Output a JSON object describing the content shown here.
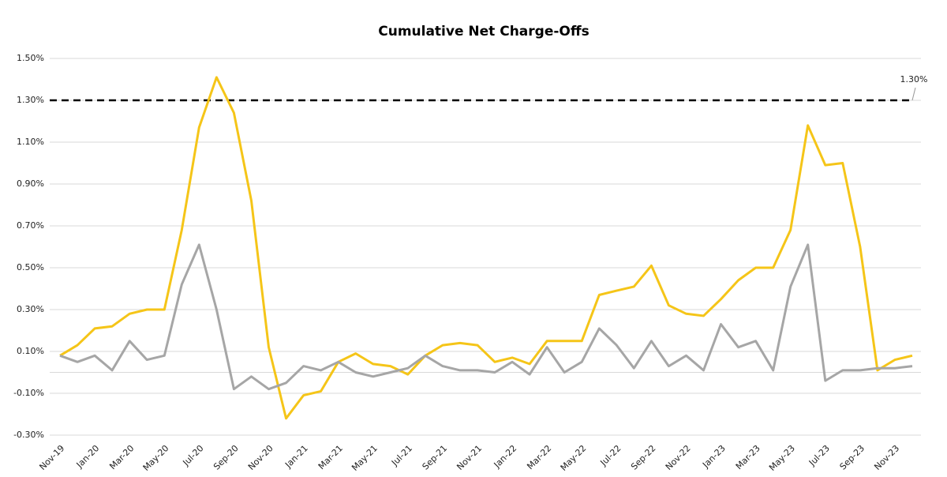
{
  "chart_data": {
    "type": "line",
    "title": "Cumulative Net Charge-Offs",
    "categories": [
      "Nov-19",
      null,
      "Jan-20",
      null,
      "Mar-20",
      null,
      "May-20",
      null,
      "Jul-20",
      null,
      "Sep-20",
      null,
      "Nov-20",
      null,
      "Jan-21",
      null,
      "Mar-21",
      null,
      "May-21",
      null,
      "Jul-21",
      null,
      "Sep-21",
      null,
      "Nov-21",
      null,
      "Jan-22",
      null,
      "Mar-22",
      null,
      "May-22",
      null,
      "Jul-22",
      null,
      "Sep-22",
      null,
      "Nov-22",
      null,
      "Jan-23",
      null,
      "Mar-23",
      null,
      "May-23",
      null,
      "Jul-23",
      null,
      "Sep-23",
      null,
      "Nov-23",
      null
    ],
    "series": [
      {
        "color": "#f5c518",
        "values": [
          0.08,
          0.13,
          0.21,
          0.22,
          0.28,
          0.3,
          0.3,
          0.68,
          1.17,
          1.41,
          1.24,
          0.82,
          0.12,
          -0.22,
          -0.11,
          -0.09,
          0.05,
          0.09,
          0.04,
          0.03,
          -0.01,
          0.08,
          0.13,
          0.14,
          0.13,
          0.05,
          0.07,
          0.04,
          0.15,
          0.15,
          0.15,
          0.37,
          0.39,
          0.41,
          0.51,
          0.32,
          0.28,
          0.27,
          0.35,
          0.44,
          0.5,
          0.5,
          0.68,
          1.18,
          0.99,
          1.0,
          0.6,
          0.01,
          0.06,
          0.08
        ]
      },
      {
        "color": "#a6a6a6",
        "values": [
          0.08,
          0.05,
          0.08,
          0.01,
          0.15,
          0.06,
          0.08,
          0.42,
          0.61,
          0.3,
          -0.08,
          -0.02,
          -0.08,
          -0.05,
          0.03,
          0.01,
          0.05,
          0.0,
          -0.02,
          0.0,
          0.02,
          0.08,
          0.03,
          0.01,
          0.01,
          0.0,
          0.05,
          -0.01,
          0.12,
          0.0,
          0.05,
          0.21,
          0.13,
          0.02,
          0.15,
          0.03,
          0.08,
          0.01,
          0.23,
          0.12,
          0.15,
          0.01,
          0.41,
          0.61,
          -0.04,
          0.01,
          0.01,
          0.02,
          0.02,
          0.03
        ]
      }
    ],
    "ylim": [
      -0.3,
      1.5
    ],
    "yticks": [
      {
        "value": -0.3,
        "label": "-0.30%"
      },
      {
        "value": -0.1,
        "label": "-0.10%"
      },
      {
        "value": 0.1,
        "label": "0.10%"
      },
      {
        "value": 0.3,
        "label": "0.30%"
      },
      {
        "value": 0.5,
        "label": "0.50%"
      },
      {
        "value": 0.7,
        "label": "0.70%"
      },
      {
        "value": 0.9,
        "label": "0.90%"
      },
      {
        "value": 1.1,
        "label": "1.10%"
      },
      {
        "value": 1.3,
        "label": "1.30%"
      },
      {
        "value": 1.5,
        "label": "1.50%"
      }
    ],
    "reference_line": {
      "value": 1.3,
      "label": "1.30%",
      "color": "#000000"
    },
    "grid": true
  }
}
